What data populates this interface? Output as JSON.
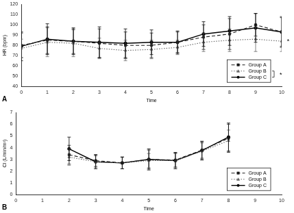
{
  "chart_data": [
    {
      "type": "line",
      "panel_label": "A",
      "x_label": "Time",
      "y_label": "HR (bpm)",
      "x": [
        0,
        1,
        2,
        3,
        4,
        5,
        6,
        7,
        8,
        9,
        10
      ],
      "xlim": [
        0,
        10
      ],
      "xticks": [
        0,
        1,
        2,
        3,
        4,
        5,
        6,
        7,
        8,
        9,
        10
      ],
      "ylim": [
        40,
        120
      ],
      "yticks": [
        40,
        50,
        60,
        70,
        80,
        90,
        100,
        110,
        120
      ],
      "grid": false,
      "legend": "lower right",
      "series": [
        {
          "name": "Group A",
          "color": "#1a1a1a",
          "line_style": "dashed",
          "marker": "square",
          "values": [
            80,
            85,
            84,
            82,
            80,
            80,
            83,
            88,
            91,
            100,
            93
          ],
          "errors": [
            12,
            13,
            12,
            14,
            13,
            12,
            10,
            12,
            15,
            11,
            15
          ]
        },
        {
          "name": "Group B",
          "color": "#666666",
          "line_style": "dotted",
          "marker": "triangle",
          "values": [
            77,
            83,
            82,
            77,
            75,
            76,
            78,
            83,
            85,
            86,
            84
          ],
          "errors": [
            9,
            14,
            13,
            10,
            10,
            9,
            7,
            9,
            11,
            12,
            10
          ]
        },
        {
          "name": "Group C",
          "color": "#000000",
          "line_style": "solid",
          "marker": "circle",
          "values": [
            79,
            86,
            84,
            83,
            82,
            83,
            83,
            91,
            94,
            97,
            93
          ],
          "errors": [
            14,
            15,
            13,
            15,
            14,
            12,
            11,
            12,
            14,
            14,
            14
          ]
        }
      ],
      "annotations": [
        {
          "text": "*",
          "x": 9.97,
          "y": 51
        },
        {
          "text": "*",
          "x": 10.25,
          "y": 84
        }
      ]
    },
    {
      "type": "line",
      "panel_label": "B",
      "x_label": "Time",
      "y_label": "CI (L/min/m²)",
      "x": [
        2,
        3,
        4,
        5,
        6,
        7,
        8
      ],
      "xlim": [
        0,
        10
      ],
      "xticks": [
        0,
        1,
        2,
        3,
        4,
        5,
        6,
        7,
        8,
        9,
        10
      ],
      "ylim": [
        0,
        7
      ],
      "yticks": [
        0,
        1,
        2,
        3,
        4,
        5,
        6,
        7
      ],
      "grid": false,
      "legend": "lower right",
      "series": [
        {
          "name": "Group A",
          "color": "#1a1a1a",
          "line_style": "dashed",
          "marker": "square",
          "values": [
            3.4,
            2.9,
            2.7,
            3.0,
            2.95,
            3.8,
            4.8
          ],
          "errors": [
            0.8,
            0.5,
            0.5,
            0.8,
            0.6,
            0.7,
            1.2
          ]
        },
        {
          "name": "Group B",
          "color": "#666666",
          "line_style": "dotted",
          "marker": "triangle",
          "values": [
            3.2,
            2.8,
            2.7,
            2.9,
            2.9,
            3.7,
            4.6
          ],
          "errors": [
            0.7,
            0.5,
            0.5,
            0.6,
            0.6,
            0.7,
            0.9
          ]
        },
        {
          "name": "Group C",
          "color": "#000000",
          "line_style": "solid",
          "marker": "circle",
          "values": [
            3.9,
            2.8,
            2.7,
            3.0,
            2.9,
            3.75,
            4.9
          ],
          "errors": [
            1.0,
            0.6,
            0.5,
            0.9,
            0.7,
            0.8,
            1.2
          ]
        }
      ]
    }
  ]
}
